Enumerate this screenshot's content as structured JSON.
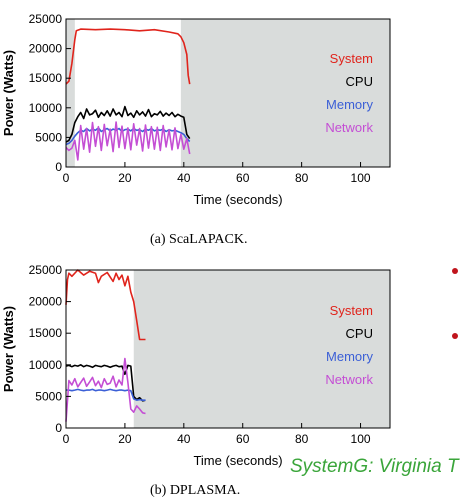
{
  "chart_data": [
    {
      "type": "line",
      "caption": "(a) ScaLAPACK.",
      "xlabel": "Time (seconds)",
      "ylabel": "Power (Watts)",
      "xlim": [
        0,
        110
      ],
      "ylim": [
        0,
        25000
      ],
      "xticks": [
        0,
        20,
        40,
        60,
        80,
        100
      ],
      "yticks": [
        0,
        5000,
        10000,
        15000,
        20000,
        25000
      ],
      "shaded_ranges": [
        [
          0,
          3
        ],
        [
          39,
          110
        ]
      ],
      "legend_position": "right",
      "series": [
        {
          "name": "System",
          "color": "#e0241c",
          "x": [
            0,
            1,
            2,
            3,
            3.5,
            5,
            10,
            15,
            20,
            25,
            30,
            35,
            38,
            39,
            40,
            41,
            41.5,
            42
          ],
          "y": [
            14000,
            14500,
            17500,
            21500,
            23000,
            23300,
            23200,
            23300,
            23200,
            23000,
            23200,
            22800,
            22500,
            22000,
            21000,
            19000,
            15500,
            14000
          ]
        },
        {
          "name": "CPU",
          "color": "#000000",
          "x": [
            0,
            1,
            2,
            3,
            4,
            5,
            6,
            7,
            8,
            9,
            10,
            11,
            12,
            13,
            14,
            15,
            16,
            17,
            18,
            19,
            20,
            21,
            22,
            23,
            24,
            25,
            26,
            27,
            28,
            29,
            30,
            31,
            32,
            33,
            34,
            35,
            36,
            37,
            38,
            39,
            40,
            41,
            42
          ],
          "y": [
            4200,
            4500,
            5500,
            7500,
            8500,
            9200,
            8200,
            9800,
            8800,
            9000,
            9600,
            8400,
            9200,
            8700,
            9500,
            8600,
            9800,
            8800,
            9200,
            8500,
            10200,
            8700,
            9100,
            8400,
            9500,
            8800,
            9300,
            8600,
            9700,
            8500,
            9000,
            8800,
            9400,
            8600,
            9100,
            8700,
            9200,
            8500,
            8900,
            8600,
            8400,
            5500,
            4800
          ]
        },
        {
          "name": "Memory",
          "color": "#3b5fd6",
          "x": [
            0,
            1,
            2,
            3,
            4,
            5,
            6,
            7,
            8,
            9,
            10,
            11,
            12,
            13,
            14,
            15,
            16,
            17,
            18,
            19,
            20,
            21,
            22,
            23,
            24,
            25,
            26,
            27,
            28,
            29,
            30,
            31,
            32,
            33,
            34,
            35,
            36,
            37,
            38,
            39,
            40,
            41,
            42
          ],
          "y": [
            3800,
            4000,
            4500,
            5200,
            5800,
            6200,
            6000,
            6500,
            6100,
            6400,
            6200,
            6600,
            6000,
            6300,
            6500,
            6100,
            6400,
            6200,
            6500,
            6000,
            6300,
            6400,
            6100,
            6500,
            6200,
            6300,
            6000,
            6400,
            6200,
            6500,
            6100,
            6300,
            6200,
            6400,
            6000,
            6300,
            6100,
            6200,
            6000,
            5800,
            5500,
            4800,
            4300
          ]
        },
        {
          "name": "Network",
          "color": "#c44ed4",
          "x": [
            0,
            1,
            2,
            3,
            4,
            5,
            6,
            7,
            8,
            9,
            10,
            11,
            12,
            13,
            14,
            15,
            16,
            17,
            18,
            19,
            20,
            21,
            22,
            23,
            24,
            25,
            26,
            27,
            28,
            29,
            30,
            31,
            32,
            33,
            34,
            35,
            36,
            37,
            38,
            39,
            40,
            41,
            42
          ],
          "y": [
            3300,
            2800,
            3200,
            4500,
            1200,
            7000,
            3000,
            6500,
            2500,
            7500,
            3500,
            6800,
            2800,
            7200,
            3600,
            6400,
            2600,
            7600,
            3300,
            6900,
            3100,
            6600,
            2900,
            7300,
            3700,
            6500,
            2700,
            7100,
            3200,
            6800,
            3000,
            6700,
            2800,
            7000,
            3400,
            6300,
            2900,
            6600,
            3100,
            5500,
            3000,
            4800,
            2200
          ]
        }
      ]
    },
    {
      "type": "line",
      "caption": "(b) DPLASMA.",
      "xlabel": "Time (seconds)",
      "ylabel": "Power (Watts)",
      "xlim": [
        0,
        110
      ],
      "ylim": [
        0,
        25000
      ],
      "xticks": [
        0,
        20,
        40,
        60,
        80,
        100
      ],
      "yticks": [
        0,
        5000,
        10000,
        15000,
        20000,
        25000
      ],
      "shaded_ranges": [
        [
          23,
          110
        ]
      ],
      "legend_position": "right",
      "series": [
        {
          "name": "System",
          "color": "#e0241c",
          "x": [
            0,
            0.5,
            1,
            2,
            4,
            6,
            8,
            10,
            11,
            12,
            14,
            16,
            17,
            18,
            19,
            20,
            21,
            22,
            23,
            24,
            25,
            26,
            27
          ],
          "y": [
            19500,
            23500,
            24500,
            24000,
            25000,
            24200,
            24800,
            24500,
            23000,
            24000,
            24600,
            23200,
            24500,
            23500,
            24200,
            22500,
            24000,
            21500,
            20000,
            17000,
            14000,
            14000,
            14000
          ]
        },
        {
          "name": "CPU",
          "color": "#000000",
          "x": [
            0,
            1,
            2,
            3,
            4,
            5,
            6,
            7,
            8,
            9,
            10,
            11,
            12,
            13,
            14,
            15,
            16,
            17,
            18,
            19,
            20,
            21,
            22,
            23,
            24,
            25,
            26,
            27
          ],
          "y": [
            9800,
            9900,
            9700,
            9900,
            9800,
            10000,
            9700,
            9900,
            9800,
            9600,
            9900,
            9800,
            9700,
            9900,
            9800,
            9600,
            9800,
            9900,
            9700,
            9800,
            8500,
            9900,
            9800,
            5000,
            4500,
            4800,
            4300,
            4400
          ]
        },
        {
          "name": "Memory",
          "color": "#3b5fd6",
          "x": [
            0,
            1,
            2,
            3,
            4,
            5,
            6,
            7,
            8,
            9,
            10,
            11,
            12,
            13,
            14,
            15,
            16,
            17,
            18,
            19,
            20,
            21,
            22,
            23,
            24,
            25,
            26,
            27
          ],
          "y": [
            6000,
            6000,
            5900,
            6000,
            6100,
            6000,
            5900,
            6000,
            6000,
            6100,
            5900,
            6000,
            6000,
            5900,
            6000,
            6100,
            6000,
            5900,
            6000,
            6000,
            5900,
            6000,
            5900,
            4600,
            4400,
            4500,
            4400,
            4400
          ]
        },
        {
          "name": "Network",
          "color": "#c44ed4",
          "x": [
            0,
            1,
            2,
            3,
            4,
            5,
            6,
            7,
            8,
            9,
            10,
            11,
            12,
            13,
            14,
            15,
            16,
            17,
            18,
            19,
            20,
            21,
            22,
            23,
            24,
            25,
            26,
            27
          ],
          "y": [
            1000,
            7500,
            6800,
            7800,
            6500,
            7200,
            7900,
            6600,
            7300,
            8000,
            6700,
            7400,
            6400,
            7800,
            6900,
            7100,
            8200,
            6500,
            7600,
            6800,
            11000,
            7200,
            3000,
            2500,
            3500,
            3000,
            2400,
            2300
          ]
        }
      ]
    }
  ],
  "overlay": {
    "systemg_text": "SystemG: Virginia T",
    "bullet_color": "#c0141c"
  }
}
